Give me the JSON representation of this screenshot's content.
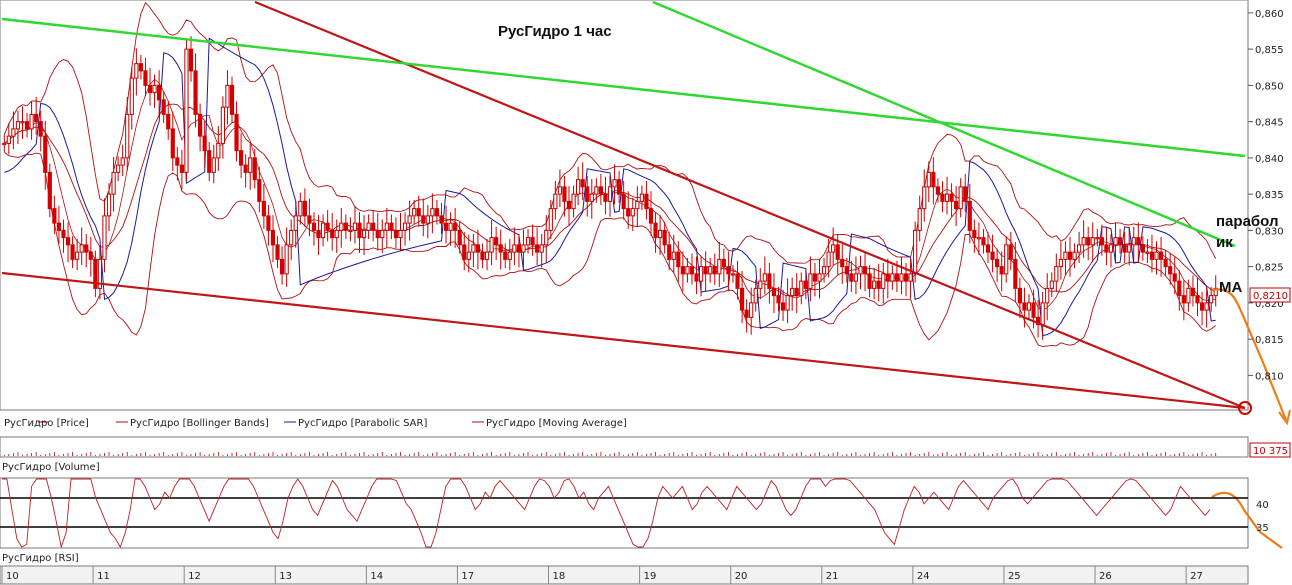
{
  "chart_data": {
    "type": "candlestick",
    "title": "РусГидро   1 час",
    "colors": {
      "candle_up": "#c00000",
      "candle_down": "#d40000",
      "bollinger": "#b01010",
      "parabolic_sar": "#1a1a9a",
      "moving_average": "#b01010",
      "trend_red": "#c01616",
      "trend_green": "#2ed82e",
      "forecast": "#f07a18",
      "rsi": "#c02020"
    },
    "price_axis": {
      "ticks": [
        "0,860",
        "0,855",
        "0,850",
        "0,845",
        "0,840",
        "0,835",
        "0,830",
        "0,825",
        "0,820",
        "0,815",
        "0,810"
      ],
      "tick_values": [
        0.86,
        0.855,
        0.85,
        0.845,
        0.84,
        0.835,
        0.83,
        0.825,
        0.82,
        0.815,
        0.81
      ],
      "range": [
        0.8055,
        0.8615
      ],
      "current_label": "0,8210",
      "current_value": 0.821
    },
    "volume_axis": {
      "label": "10 375"
    },
    "rsi_axis": {
      "ticks": [
        "40",
        "35"
      ],
      "tick_values": [
        40,
        35
      ]
    },
    "x_axis": {
      "tick_labels": [
        "10",
        "11",
        "12",
        "13",
        "14",
        "17",
        "18",
        "19",
        "20",
        "21",
        "24",
        "25",
        "26",
        "27"
      ]
    },
    "legend": {
      "price": [
        {
          "label": "РусГидро [Price]",
          "color": "#c00000"
        },
        {
          "label": "РусГидро [Bollinger Bands]",
          "color": "#b01010"
        },
        {
          "label": "РусГидро [Parabolic SAR]",
          "color": "#1a1a9a"
        },
        {
          "label": "РусГидро [Moving Average]",
          "color": "#b01010"
        }
      ],
      "volume": "РусГидро [Volume]",
      "rsi": "РусГидро [RSI]"
    },
    "annotations": {
      "parabolic": [
        "парабол",
        "ик"
      ],
      "ma": "MA"
    },
    "close_series": [
      {
        "day": "10",
        "values": [
          0.842,
          0.843,
          0.844,
          0.845,
          0.845,
          0.844,
          0.846,
          0.845,
          0.843,
          0.838,
          0.833,
          0.831,
          0.83,
          0.829,
          0.828,
          0.826,
          0.827,
          0.828,
          0.827,
          0.826
        ]
      },
      {
        "day": "11",
        "values": [
          0.822,
          0.826,
          0.832,
          0.835,
          0.838,
          0.839,
          0.84,
          0.846,
          0.851,
          0.853,
          0.852,
          0.85,
          0.849,
          0.85,
          0.848,
          0.846,
          0.844,
          0.84,
          0.839,
          0.838
        ]
      },
      {
        "day": "12",
        "values": [
          0.855,
          0.852,
          0.846,
          0.843,
          0.841,
          0.838,
          0.84,
          0.842,
          0.847,
          0.85,
          0.846,
          0.841,
          0.839,
          0.838,
          0.84,
          0.837,
          0.834,
          0.832,
          0.83,
          0.828
        ]
      },
      {
        "day": "13",
        "values": [
          0.826,
          0.824,
          0.828,
          0.83,
          0.832,
          0.834,
          0.832,
          0.831,
          0.83,
          0.829,
          0.831,
          0.83,
          0.829,
          0.83,
          0.831,
          0.83,
          0.83,
          0.831,
          0.829,
          0.83
        ]
      },
      {
        "day": "14",
        "values": [
          0.831,
          0.83,
          0.829,
          0.83,
          0.831,
          0.83,
          0.829,
          0.83,
          0.831,
          0.832,
          0.833,
          0.832,
          0.831,
          0.832,
          0.833,
          0.832,
          0.831,
          0.83,
          0.831,
          0.83
        ]
      },
      {
        "day": "17",
        "values": [
          0.828,
          0.826,
          0.827,
          0.828,
          0.827,
          0.826,
          0.827,
          0.829,
          0.828,
          0.827,
          0.826,
          0.827,
          0.828,
          0.827,
          0.828,
          0.829,
          0.828,
          0.827,
          0.828,
          0.83
        ]
      },
      {
        "day": "18",
        "values": [
          0.833,
          0.835,
          0.836,
          0.834,
          0.833,
          0.835,
          0.837,
          0.836,
          0.834,
          0.835,
          0.836,
          0.835,
          0.834,
          0.836,
          0.837,
          0.835,
          0.833,
          0.832,
          0.833,
          0.834
        ]
      },
      {
        "day": "19",
        "values": [
          0.835,
          0.833,
          0.831,
          0.829,
          0.83,
          0.828,
          0.826,
          0.827,
          0.825,
          0.824,
          0.825,
          0.824,
          0.823,
          0.825,
          0.824,
          0.825,
          0.824,
          0.826,
          0.825,
          0.824
        ]
      },
      {
        "day": "20",
        "values": [
          0.824,
          0.822,
          0.819,
          0.818,
          0.82,
          0.822,
          0.823,
          0.824,
          0.822,
          0.821,
          0.82,
          0.819,
          0.821,
          0.822,
          0.821,
          0.823,
          0.822,
          0.824,
          0.823,
          0.824
        ]
      },
      {
        "day": "21",
        "values": [
          0.825,
          0.827,
          0.828,
          0.826,
          0.825,
          0.824,
          0.823,
          0.824,
          0.825,
          0.824,
          0.822,
          0.823,
          0.822,
          0.824,
          0.823,
          0.824,
          0.823,
          0.824,
          0.823,
          0.824
        ]
      },
      {
        "day": "24",
        "values": [
          0.83,
          0.833,
          0.836,
          0.838,
          0.836,
          0.835,
          0.834,
          0.835,
          0.834,
          0.833,
          0.836,
          0.834,
          0.83,
          0.829,
          0.829,
          0.828,
          0.827,
          0.826,
          0.825,
          0.824
        ]
      },
      {
        "day": "25",
        "values": [
          0.828,
          0.826,
          0.822,
          0.82,
          0.819,
          0.82,
          0.818,
          0.817,
          0.82,
          0.822,
          0.823,
          0.825,
          0.826,
          0.827,
          0.826,
          0.827,
          0.828,
          0.829,
          0.828,
          0.829
        ]
      },
      {
        "day": "26",
        "values": [
          0.829,
          0.828,
          0.827,
          0.828,
          0.829,
          0.828,
          0.827,
          0.828,
          0.829,
          0.828,
          0.827,
          0.827,
          0.826,
          0.827,
          0.826,
          0.825,
          0.824,
          0.823,
          0.821,
          0.82
        ]
      },
      {
        "day": "27",
        "values": [
          0.822,
          0.821,
          0.82,
          0.819,
          0.82,
          0.821,
          0.822
        ]
      }
    ],
    "rsi_values": [
      46,
      44,
      38,
      33,
      30,
      32,
      42,
      46,
      48,
      45,
      40,
      36,
      31,
      34,
      44,
      50,
      52,
      48,
      44,
      40,
      38,
      36,
      34,
      33,
      31,
      34,
      38,
      44,
      46,
      42,
      40,
      38,
      39,
      41,
      40,
      42,
      44,
      46,
      44,
      42,
      40,
      38,
      36,
      38,
      40,
      42,
      44,
      46,
      48,
      46,
      44,
      42,
      40,
      38,
      36,
      34,
      33,
      36,
      40,
      42,
      44,
      42,
      40,
      38,
      37,
      39,
      41,
      43,
      42,
      40,
      38,
      37,
      36,
      38,
      40,
      42,
      44,
      46,
      47,
      45,
      43,
      41,
      39,
      38,
      36,
      34,
      31,
      30,
      34,
      38,
      42,
      44,
      46,
      44,
      42,
      40,
      38,
      39,
      41,
      40,
      42,
      43,
      42,
      41,
      40,
      39,
      38,
      40,
      42,
      44,
      43,
      42,
      40,
      41,
      43,
      44,
      42,
      40,
      41,
      39,
      38,
      40,
      41,
      42,
      40,
      38,
      36,
      34,
      32,
      30,
      31,
      33,
      36,
      40,
      42,
      41,
      40,
      41,
      42,
      40,
      38,
      39,
      41,
      42,
      41,
      40,
      39,
      38,
      40,
      42,
      41,
      40,
      39,
      38,
      39,
      41,
      43,
      42,
      40,
      38,
      37,
      38,
      40,
      42,
      44,
      45,
      44,
      42,
      43,
      44,
      45,
      44,
      43,
      42,
      41,
      40,
      39,
      38,
      36,
      34,
      33,
      32,
      35,
      38,
      40,
      42,
      41,
      39,
      40,
      41,
      40,
      39,
      38,
      40,
      42,
      43,
      42,
      41,
      40,
      39,
      38,
      40,
      41,
      42,
      43,
      44,
      42,
      40,
      39,
      40,
      41,
      42,
      43,
      44,
      45,
      44,
      43,
      42,
      41,
      40,
      39,
      38,
      37,
      38,
      39,
      40,
      41,
      42,
      43,
      44,
      43,
      42,
      41,
      40,
      39,
      38,
      37,
      38,
      40,
      42,
      41,
      40,
      39,
      38,
      37,
      38
    ]
  }
}
